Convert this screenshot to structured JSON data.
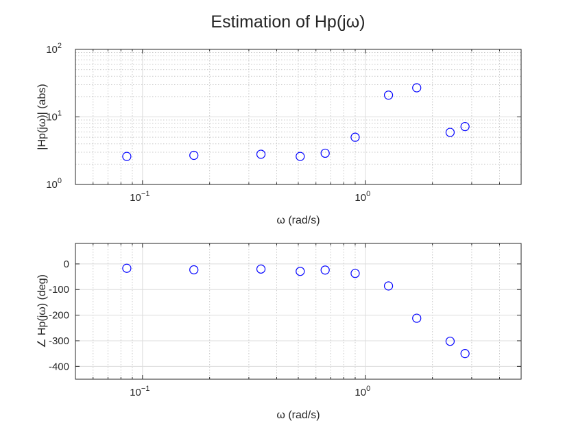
{
  "chart_data": [
    {
      "type": "scatter",
      "title": "Estimation of Hp(jω)",
      "xlabel": "ω (rad/s)",
      "ylabel": "|Hp(jω)| (abs)",
      "xscale": "log",
      "yscale": "log",
      "xlim": [
        0.05,
        5
      ],
      "ylim": [
        1,
        100
      ],
      "xticks": [
        {
          "base": "10",
          "exp": "-1"
        },
        {
          "base": "10",
          "exp": "0"
        }
      ],
      "yticks": [
        {
          "base": "10",
          "exp": "0"
        },
        {
          "base": "10",
          "exp": "1"
        },
        {
          "base": "10",
          "exp": "2"
        }
      ],
      "grid": true,
      "marker": "o",
      "color": "#0000ff",
      "x": [
        0.085,
        0.17,
        0.34,
        0.51,
        0.66,
        0.9,
        1.27,
        1.7,
        2.4,
        2.8
      ],
      "y": [
        2.6,
        2.7,
        2.8,
        2.6,
        2.9,
        5.0,
        21,
        27,
        5.9,
        7.2
      ]
    },
    {
      "type": "scatter",
      "xlabel": "ω (rad/s)",
      "ylabel": "∠ Hp(jω) (deg)",
      "xscale": "log",
      "yscale": "linear",
      "xlim": [
        0.05,
        5
      ],
      "ylim": [
        -450,
        80
      ],
      "xticks": [
        {
          "base": "10",
          "exp": "-1"
        },
        {
          "base": "10",
          "exp": "0"
        }
      ],
      "yticks": [
        "0",
        "-100",
        "-200",
        "-300",
        "-400"
      ],
      "grid": true,
      "marker": "o",
      "color": "#0000ff",
      "x": [
        0.085,
        0.17,
        0.34,
        0.51,
        0.66,
        0.9,
        1.27,
        1.7,
        2.4,
        2.8
      ],
      "y": [
        -17,
        -23,
        -20,
        -29,
        -24,
        -37,
        -86,
        -212,
        -302,
        -350
      ]
    }
  ]
}
